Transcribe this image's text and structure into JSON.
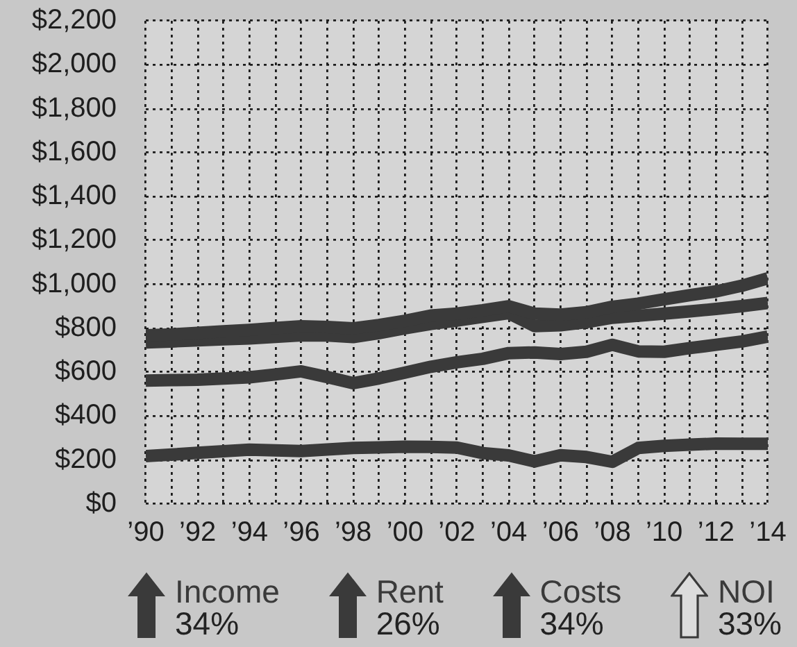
{
  "chart_data": {
    "type": "line",
    "x": [
      1990,
      1991,
      1992,
      1993,
      1994,
      1995,
      1996,
      1997,
      1998,
      1999,
      2000,
      2001,
      2002,
      2003,
      2004,
      2005,
      2006,
      2007,
      2008,
      2009,
      2010,
      2011,
      2012,
      2013,
      2014
    ],
    "series": [
      {
        "name": "Income",
        "color": "#3a3a3a",
        "values": [
          768,
          772,
          779,
          786,
          793,
          801,
          809,
          806,
          800,
          815,
          834,
          858,
          867,
          882,
          900,
          867,
          862,
          873,
          898,
          912,
          932,
          951,
          968,
          994,
          1028
        ]
      },
      {
        "name": "Rent",
        "color": "#3a3a3a",
        "values": [
          736,
          740,
          745,
          750,
          754,
          761,
          768,
          767,
          760,
          778,
          800,
          820,
          835,
          852,
          869,
          810,
          814,
          828,
          848,
          857,
          867,
          877,
          888,
          901,
          915
        ]
      },
      {
        "name": "Costs",
        "color": "#3a3a3a",
        "values": [
          562,
          564,
          566,
          571,
          577,
          590,
          604,
          578,
          550,
          572,
          598,
          625,
          645,
          661,
          687,
          690,
          683,
          693,
          725,
          695,
          693,
          710,
          725,
          740,
          762
        ]
      },
      {
        "name": "NOI",
        "color": "#3a3a3a",
        "values": [
          218,
          225,
          233,
          240,
          247,
          244,
          241,
          248,
          255,
          258,
          261,
          260,
          257,
          232,
          221,
          194,
          222,
          214,
          192,
          255,
          265,
          270,
          275,
          274,
          274
        ]
      }
    ],
    "xlim": [
      1990,
      2014
    ],
    "xticks": [
      {
        "value": 1990,
        "label": "’90"
      },
      {
        "value": 1991,
        "label": null
      },
      {
        "value": 1992,
        "label": "’92"
      },
      {
        "value": 1993,
        "label": null
      },
      {
        "value": 1994,
        "label": "’94"
      },
      {
        "value": 1995,
        "label": null
      },
      {
        "value": 1996,
        "label": "’96"
      },
      {
        "value": 1997,
        "label": null
      },
      {
        "value": 1998,
        "label": "’98"
      },
      {
        "value": 1999,
        "label": null
      },
      {
        "value": 2000,
        "label": "’00"
      },
      {
        "value": 2001,
        "label": null
      },
      {
        "value": 2002,
        "label": "’02"
      },
      {
        "value": 2003,
        "label": null
      },
      {
        "value": 2004,
        "label": "’04"
      },
      {
        "value": 2005,
        "label": null
      },
      {
        "value": 2006,
        "label": "’06"
      },
      {
        "value": 2007,
        "label": null
      },
      {
        "value": 2008,
        "label": "’08"
      },
      {
        "value": 2009,
        "label": null
      },
      {
        "value": 2010,
        "label": "’10"
      },
      {
        "value": 2011,
        "label": null
      },
      {
        "value": 2012,
        "label": "’12"
      },
      {
        "value": 2013,
        "label": null
      },
      {
        "value": 2014,
        "label": "’14"
      }
    ],
    "ylim": [
      0,
      2200
    ],
    "yticks": [
      {
        "value": 0,
        "label": "$0"
      },
      {
        "value": 200,
        "label": "$200"
      },
      {
        "value": 400,
        "label": "$400"
      },
      {
        "value": 600,
        "label": "$600"
      },
      {
        "value": 800,
        "label": "$800"
      },
      {
        "value": 1000,
        "label": "$1,000"
      },
      {
        "value": 1200,
        "label": "$1,200"
      },
      {
        "value": 1400,
        "label": "$1,400"
      },
      {
        "value": 1600,
        "label": "$1,600"
      },
      {
        "value": 1800,
        "label": "$1,800"
      },
      {
        "value": 2000,
        "label": "$2,000"
      },
      {
        "value": 2200,
        "label": "$2,200"
      }
    ],
    "grid": true,
    "legend": "bottom",
    "marker": "none",
    "line_style": "solid",
    "annotations": [
      "34%",
      "26%",
      "34%",
      "33%"
    ]
  }
}
